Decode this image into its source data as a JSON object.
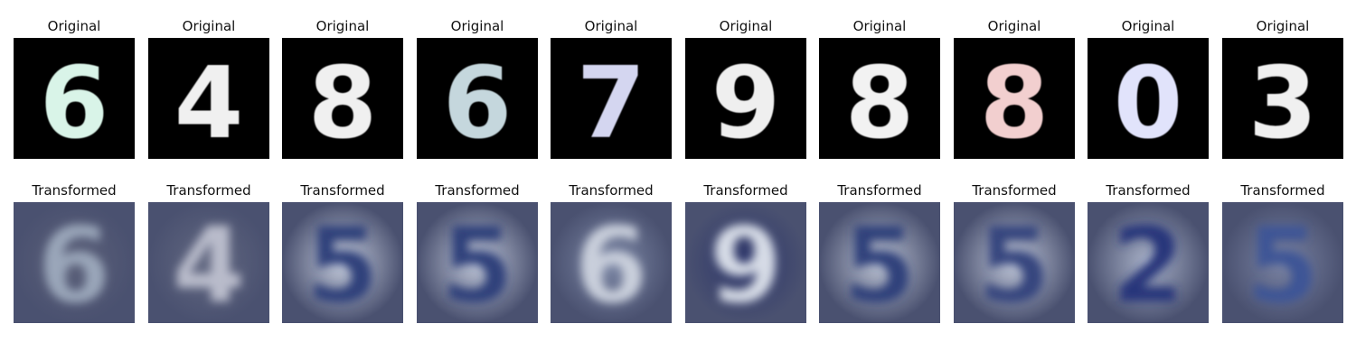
{
  "rows": [
    {
      "name": "original",
      "cells": [
        {
          "title": "Original",
          "digit": "6",
          "color": "#d9f4e8",
          "bg": "#000000"
        },
        {
          "title": "Original",
          "digit": "4",
          "color": "#f0f0f0",
          "bg": "#000000"
        },
        {
          "title": "Original",
          "digit": "8",
          "color": "#f0f0f0",
          "bg": "#000000"
        },
        {
          "title": "Original",
          "digit": "6",
          "color": "#c5d7dd",
          "bg": "#000000"
        },
        {
          "title": "Original",
          "digit": "7",
          "color": "#d4d6f0",
          "bg": "#000000"
        },
        {
          "title": "Original",
          "digit": "9",
          "color": "#efefef",
          "bg": "#000000"
        },
        {
          "title": "Original",
          "digit": "8",
          "color": "#f2f2f2",
          "bg": "#000000"
        },
        {
          "title": "Original",
          "digit": "8",
          "color": "#f2cfcf",
          "bg": "#000000"
        },
        {
          "title": "Original",
          "digit": "0",
          "color": "#e1e3fb",
          "bg": "#000000"
        },
        {
          "title": "Original",
          "digit": "3",
          "color": "#f0f0f0",
          "bg": "#000000"
        }
      ]
    },
    {
      "name": "transformed",
      "cells": [
        {
          "title": "Transformed",
          "digit": "6",
          "color": "#9aa6b9",
          "bg": "#5b6079"
        },
        {
          "title": "Transformed",
          "digit": "4",
          "color": "#b9bccb",
          "bg": "#616780"
        },
        {
          "title": "Transformed",
          "digit": "5",
          "color": "#2f3f7a",
          "bg": "#c5ccdc"
        },
        {
          "title": "Transformed",
          "digit": "5",
          "color": "#2f3f7a",
          "bg": "#c0c7d8"
        },
        {
          "title": "Transformed",
          "digit": "6",
          "color": "#c9cfdb",
          "bg": "#7d88a6"
        },
        {
          "title": "Transformed",
          "digit": "9",
          "color": "#d6dbe6",
          "bg": "#2c356a"
        },
        {
          "title": "Transformed",
          "digit": "5",
          "color": "#2f3f7a",
          "bg": "#bcc3d3"
        },
        {
          "title": "Transformed",
          "digit": "5",
          "color": "#34447e",
          "bg": "#c0c7d8"
        },
        {
          "title": "Transformed",
          "digit": "2",
          "color": "#26357a",
          "bg": "#a9b2c8"
        },
        {
          "title": "Transformed",
          "digit": "5",
          "color": "#3d5596",
          "bg": "#7a83a3"
        }
      ]
    }
  ]
}
